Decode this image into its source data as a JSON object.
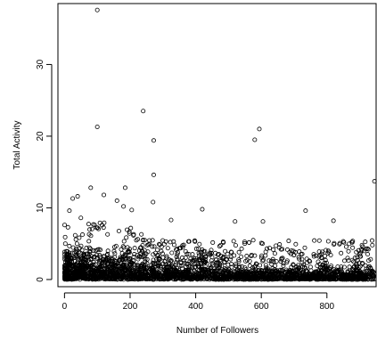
{
  "chart_data": {
    "type": "scatter",
    "xlabel": "Number of Followers",
    "ylabel": "Total Activity",
    "xlim": [
      -20,
      950
    ],
    "ylim": [
      -1,
      38.5
    ],
    "xticks": [
      0,
      200,
      400,
      600,
      800
    ],
    "yticks": [
      0,
      10,
      20,
      30
    ],
    "x_tick_labels": [
      "0",
      "200",
      "400",
      "600",
      "800"
    ],
    "y_tick_labels": [
      "0",
      "10",
      "20",
      "30"
    ],
    "marker": "open-circle",
    "point_color": "#000000",
    "grid": false,
    "notable_points": [
      {
        "x": 100,
        "y": 37.6
      },
      {
        "x": 100,
        "y": 21.3
      },
      {
        "x": 240,
        "y": 23.5
      },
      {
        "x": 272,
        "y": 19.4
      },
      {
        "x": 272,
        "y": 14.6
      },
      {
        "x": 580,
        "y": 19.5
      },
      {
        "x": 594,
        "y": 21.0
      },
      {
        "x": 945,
        "y": 13.7
      },
      {
        "x": 80,
        "y": 12.8
      },
      {
        "x": 185,
        "y": 12.8
      },
      {
        "x": 40,
        "y": 11.6
      },
      {
        "x": 25,
        "y": 11.3
      },
      {
        "x": 120,
        "y": 11.8
      },
      {
        "x": 15,
        "y": 9.6
      },
      {
        "x": 420,
        "y": 9.8
      },
      {
        "x": 735,
        "y": 9.6
      },
      {
        "x": 820,
        "y": 8.2
      },
      {
        "x": 605,
        "y": 8.1
      },
      {
        "x": 520,
        "y": 8.1
      },
      {
        "x": 325,
        "y": 8.3
      },
      {
        "x": 205,
        "y": 9.7
      },
      {
        "x": 160,
        "y": 11.0
      },
      {
        "x": 50,
        "y": 8.6
      },
      {
        "x": 270,
        "y": 10.8
      },
      {
        "x": 180,
        "y": 10.2
      }
    ],
    "dense_region": {
      "x_range": [
        0,
        945
      ],
      "y_range": [
        0,
        6
      ],
      "y_mean": 0.9,
      "description": "thousands of overlapping points concentrated near y=0, more spread at low follower counts"
    }
  }
}
